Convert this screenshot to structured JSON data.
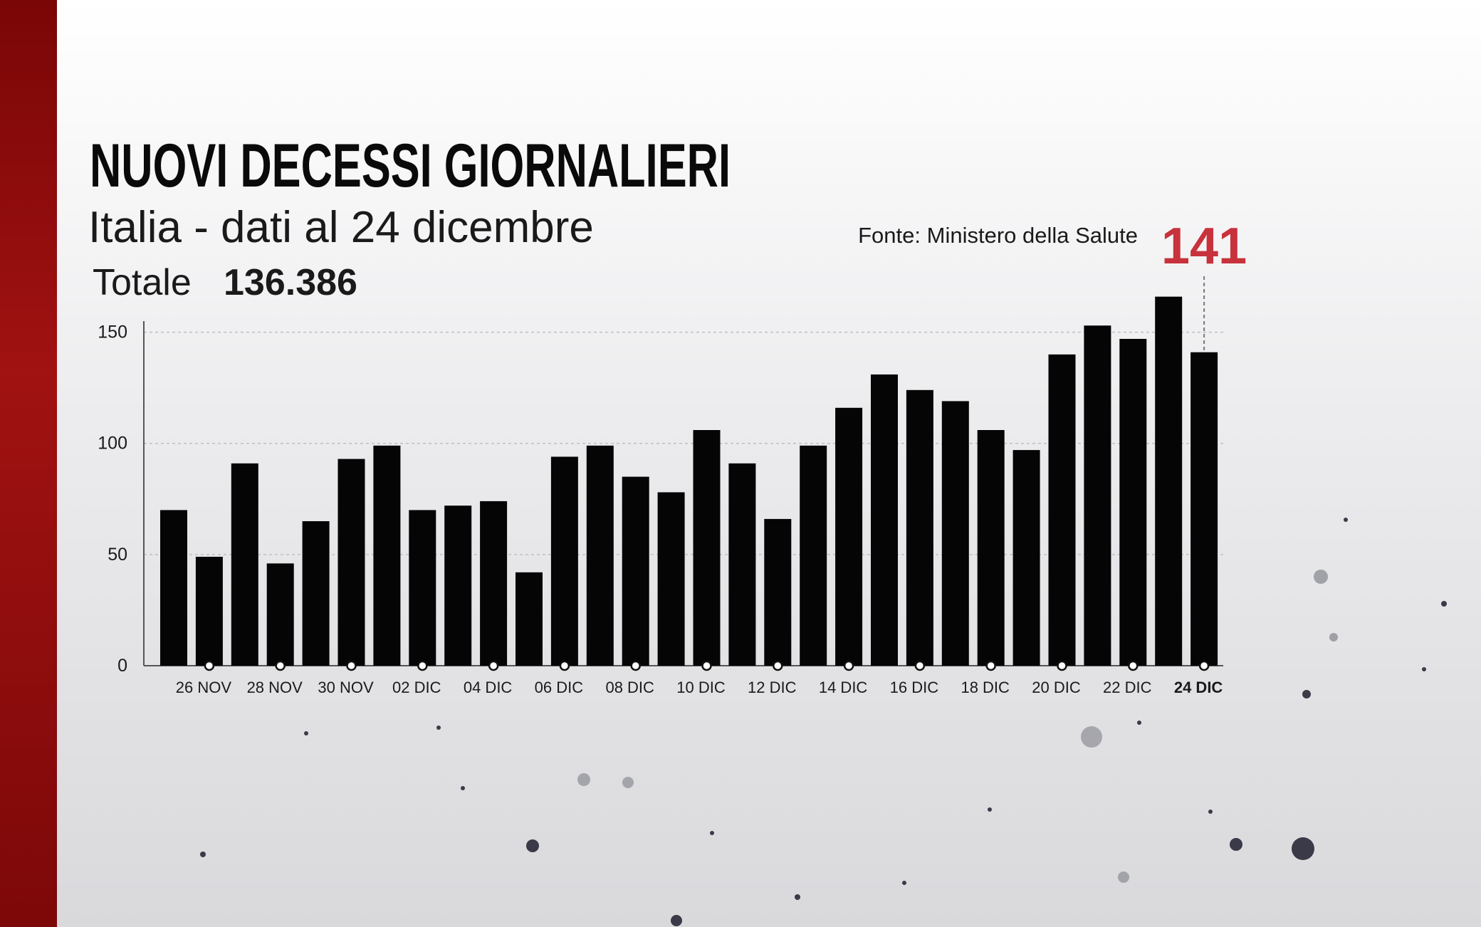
{
  "chart_data": {
    "type": "bar",
    "title": "NUOVI DECESSI GIORNALIERI",
    "subtitle": "Italia - dati al 24 dicembre",
    "total_label": "Totale",
    "total": "136.386",
    "source": "Fonte: Ministero della Salute",
    "categories": [
      null,
      "26 NOV",
      null,
      "28 NOV",
      null,
      "30 NOV",
      null,
      "02 DIC",
      null,
      "04 DIC",
      null,
      "06 DIC",
      null,
      "08 DIC",
      null,
      "10 DIC",
      null,
      "12 DIC",
      null,
      "14 DIC",
      null,
      "16 DIC",
      null,
      "18 DIC",
      null,
      "20 DIC",
      null,
      "22 DIC",
      null,
      "24 DIC"
    ],
    "values": [
      70,
      49,
      91,
      46,
      65,
      93,
      99,
      70,
      72,
      74,
      42,
      94,
      99,
      85,
      78,
      106,
      91,
      66,
      99,
      116,
      131,
      124,
      119,
      106,
      97,
      140,
      153,
      147,
      166,
      141
    ],
    "color": "#050505",
    "highlight_color": "#c8323c",
    "ylim": [
      0,
      155
    ],
    "yticks": [
      0,
      50,
      100,
      150
    ],
    "grid": true
  }
}
